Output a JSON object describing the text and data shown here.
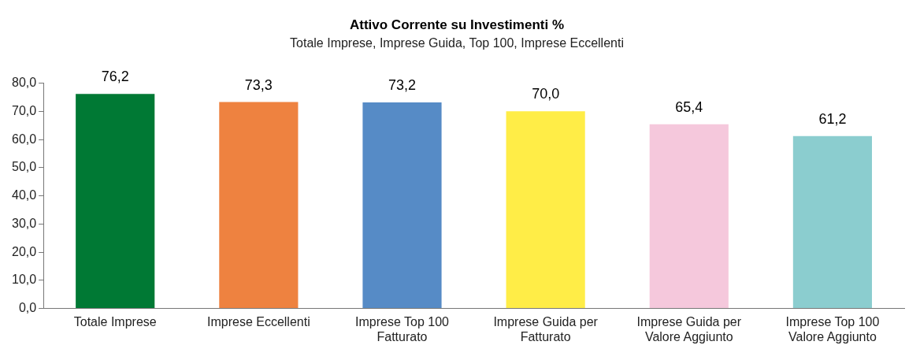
{
  "chart_data": {
    "type": "bar",
    "title": "Attivo Corrente su Investimenti %",
    "subtitle": "Totale Imprese, Imprese Guida, Top 100, Imprese Eccellenti",
    "categories": [
      "Totale Imprese",
      "Imprese Eccellenti",
      "Imprese Top 100 Fatturato",
      "Imprese Guida per Fatturato",
      "Imprese Guida per Valore Aggiunto",
      "Imprese Top 100 Valore Aggiunto"
    ],
    "values": [
      76.2,
      73.3,
      73.2,
      70.0,
      65.4,
      61.2
    ],
    "value_labels": [
      "76,2",
      "73,3",
      "73,2",
      "70,0",
      "65,4",
      "61,2"
    ],
    "colors": [
      "#007934",
      "#ee8240",
      "#568bc6",
      "#ffed47",
      "#f5c8dc",
      "#8bcdcf"
    ],
    "ylim": [
      0,
      80
    ],
    "yticks": [
      {
        "value": 0,
        "label": "0,0"
      },
      {
        "value": 10,
        "label": "10,0"
      },
      {
        "value": 20,
        "label": "20,0"
      },
      {
        "value": 30,
        "label": "30,0"
      },
      {
        "value": 40,
        "label": "40,0"
      },
      {
        "value": 50,
        "label": "50,0"
      },
      {
        "value": 60,
        "label": "60,0"
      },
      {
        "value": 70,
        "label": "70,0"
      },
      {
        "value": 80,
        "label": "80,0"
      }
    ],
    "grid": false,
    "legend": false
  }
}
